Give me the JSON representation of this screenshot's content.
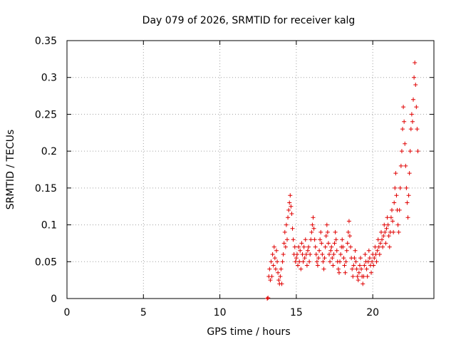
{
  "chart_data": {
    "type": "scatter",
    "title": "Day 079 of 2026, SRMTID for receiver kalg",
    "xlabel": "GPS time / hours",
    "ylabel": "SRMTID / TECUs",
    "xlim": [
      0,
      24
    ],
    "ylim": [
      0,
      0.35
    ],
    "xticks": [
      0,
      5,
      10,
      15,
      20
    ],
    "xtick_labels": [
      "0",
      "5",
      "10",
      "15",
      "20"
    ],
    "yticks": [
      0,
      0.05,
      0.1,
      0.15,
      0.2,
      0.25,
      0.3,
      0.35
    ],
    "ytick_labels": [
      "0",
      "0.05",
      "0.1",
      "0.15",
      "0.2",
      "0.25",
      "0.3",
      "0.35"
    ],
    "grid": true,
    "marker": "plus",
    "color": "#e00000",
    "series": [
      {
        "points": [
          [
            13.1,
            0.0
          ],
          [
            13.15,
            0.001
          ],
          [
            13.2,
            0.03
          ],
          [
            13.25,
            0.04
          ],
          [
            13.3,
            0.025
          ],
          [
            13.35,
            0.05
          ],
          [
            13.4,
            0.03
          ],
          [
            13.45,
            0.06
          ],
          [
            13.5,
            0.045
          ],
          [
            13.55,
            0.07
          ],
          [
            13.6,
            0.055
          ],
          [
            13.65,
            0.04
          ],
          [
            13.7,
            0.065
          ],
          [
            13.75,
            0.05
          ],
          [
            13.8,
            0.035
          ],
          [
            13.85,
            0.025
          ],
          [
            13.9,
            0.02
          ],
          [
            13.95,
            0.03
          ],
          [
            14.0,
            0.04
          ],
          [
            14.05,
            0.02
          ],
          [
            14.1,
            0.05
          ],
          [
            14.15,
            0.06
          ],
          [
            14.2,
            0.075
          ],
          [
            14.25,
            0.09
          ],
          [
            14.3,
            0.07
          ],
          [
            14.35,
            0.1
          ],
          [
            14.4,
            0.08
          ],
          [
            14.45,
            0.11
          ],
          [
            14.5,
            0.12
          ],
          [
            14.55,
            0.13
          ],
          [
            14.6,
            0.14
          ],
          [
            14.65,
            0.125
          ],
          [
            14.7,
            0.115
          ],
          [
            14.75,
            0.095
          ],
          [
            14.8,
            0.08
          ],
          [
            14.85,
            0.06
          ],
          [
            14.9,
            0.07
          ],
          [
            14.95,
            0.05
          ],
          [
            15.0,
            0.055
          ],
          [
            15.05,
            0.06
          ],
          [
            15.1,
            0.045
          ],
          [
            15.15,
            0.07
          ],
          [
            15.2,
            0.05
          ],
          [
            15.25,
            0.065
          ],
          [
            15.3,
            0.04
          ],
          [
            15.35,
            0.075
          ],
          [
            15.4,
            0.06
          ],
          [
            15.45,
            0.05
          ],
          [
            15.5,
            0.07
          ],
          [
            15.55,
            0.055
          ],
          [
            15.6,
            0.08
          ],
          [
            15.65,
            0.06
          ],
          [
            15.7,
            0.045
          ],
          [
            15.75,
            0.065
          ],
          [
            15.8,
            0.07
          ],
          [
            15.85,
            0.05
          ],
          [
            15.9,
            0.06
          ],
          [
            15.95,
            0.08
          ],
          [
            16.0,
            0.09
          ],
          [
            16.05,
            0.1
          ],
          [
            16.1,
            0.11
          ],
          [
            16.15,
            0.095
          ],
          [
            16.2,
            0.08
          ],
          [
            16.25,
            0.07
          ],
          [
            16.3,
            0.06
          ],
          [
            16.35,
            0.05
          ],
          [
            16.4,
            0.045
          ],
          [
            16.45,
            0.055
          ],
          [
            16.5,
            0.065
          ],
          [
            16.55,
            0.08
          ],
          [
            16.6,
            0.09
          ],
          [
            16.65,
            0.075
          ],
          [
            16.7,
            0.06
          ],
          [
            16.75,
            0.05
          ],
          [
            16.8,
            0.04
          ],
          [
            16.85,
            0.055
          ],
          [
            16.9,
            0.07
          ],
          [
            16.95,
            0.085
          ],
          [
            17.0,
            0.1
          ],
          [
            17.05,
            0.09
          ],
          [
            17.1,
            0.075
          ],
          [
            17.15,
            0.06
          ],
          [
            17.2,
            0.05
          ],
          [
            17.25,
            0.065
          ],
          [
            17.3,
            0.07
          ],
          [
            17.35,
            0.055
          ],
          [
            17.4,
            0.045
          ],
          [
            17.45,
            0.06
          ],
          [
            17.5,
            0.075
          ],
          [
            17.55,
            0.09
          ],
          [
            17.6,
            0.08
          ],
          [
            17.65,
            0.065
          ],
          [
            17.7,
            0.05
          ],
          [
            17.75,
            0.04
          ],
          [
            17.8,
            0.035
          ],
          [
            17.85,
            0.05
          ],
          [
            17.9,
            0.06
          ],
          [
            17.95,
            0.07
          ],
          [
            18.0,
            0.08
          ],
          [
            18.05,
            0.07
          ],
          [
            18.1,
            0.055
          ],
          [
            18.15,
            0.045
          ],
          [
            18.2,
            0.035
          ],
          [
            18.25,
            0.05
          ],
          [
            18.3,
            0.065
          ],
          [
            18.35,
            0.075
          ],
          [
            18.4,
            0.09
          ],
          [
            18.45,
            0.105
          ],
          [
            18.5,
            0.085
          ],
          [
            18.55,
            0.07
          ],
          [
            18.6,
            0.055
          ],
          [
            18.65,
            0.04
          ],
          [
            18.7,
            0.03
          ],
          [
            18.75,
            0.045
          ],
          [
            18.8,
            0.055
          ],
          [
            18.85,
            0.065
          ],
          [
            18.9,
            0.05
          ],
          [
            18.95,
            0.04
          ],
          [
            19.0,
            0.03
          ],
          [
            19.05,
            0.025
          ],
          [
            19.1,
            0.035
          ],
          [
            19.15,
            0.045
          ],
          [
            19.2,
            0.055
          ],
          [
            19.25,
            0.04
          ],
          [
            19.3,
            0.03
          ],
          [
            19.35,
            0.02
          ],
          [
            19.4,
            0.03
          ],
          [
            19.45,
            0.045
          ],
          [
            19.5,
            0.06
          ],
          [
            19.55,
            0.05
          ],
          [
            19.6,
            0.04
          ],
          [
            19.65,
            0.03
          ],
          [
            19.7,
            0.05
          ],
          [
            19.75,
            0.065
          ],
          [
            19.8,
            0.055
          ],
          [
            19.85,
            0.045
          ],
          [
            19.9,
            0.035
          ],
          [
            19.95,
            0.05
          ],
          [
            20.0,
            0.06
          ],
          [
            20.05,
            0.045
          ],
          [
            20.1,
            0.055
          ],
          [
            20.15,
            0.07
          ],
          [
            20.2,
            0.06
          ],
          [
            20.25,
            0.05
          ],
          [
            20.3,
            0.065
          ],
          [
            20.35,
            0.08
          ],
          [
            20.4,
            0.07
          ],
          [
            20.45,
            0.06
          ],
          [
            20.5,
            0.075
          ],
          [
            20.55,
            0.09
          ],
          [
            20.6,
            0.08
          ],
          [
            20.65,
            0.07
          ],
          [
            20.7,
            0.085
          ],
          [
            20.75,
            0.1
          ],
          [
            20.8,
            0.09
          ],
          [
            20.85,
            0.075
          ],
          [
            20.9,
            0.095
          ],
          [
            20.95,
            0.11
          ],
          [
            21.0,
            0.1
          ],
          [
            21.05,
            0.085
          ],
          [
            21.1,
            0.07
          ],
          [
            21.15,
            0.09
          ],
          [
            21.2,
            0.11
          ],
          [
            21.25,
            0.12
          ],
          [
            21.3,
            0.105
          ],
          [
            21.35,
            0.09
          ],
          [
            21.4,
            0.13
          ],
          [
            21.45,
            0.15
          ],
          [
            21.5,
            0.17
          ],
          [
            21.55,
            0.14
          ],
          [
            21.6,
            0.12
          ],
          [
            21.65,
            0.1
          ],
          [
            21.7,
            0.09
          ],
          [
            21.75,
            0.12
          ],
          [
            21.8,
            0.15
          ],
          [
            21.85,
            0.18
          ],
          [
            21.9,
            0.2
          ],
          [
            21.95,
            0.23
          ],
          [
            22.0,
            0.26
          ],
          [
            22.05,
            0.24
          ],
          [
            22.1,
            0.21
          ],
          [
            22.15,
            0.18
          ],
          [
            22.2,
            0.15
          ],
          [
            22.25,
            0.13
          ],
          [
            22.3,
            0.11
          ],
          [
            22.35,
            0.14
          ],
          [
            22.4,
            0.17
          ],
          [
            22.45,
            0.2
          ],
          [
            22.5,
            0.23
          ],
          [
            22.55,
            0.25
          ],
          [
            22.6,
            0.24
          ],
          [
            22.65,
            0.27
          ],
          [
            22.7,
            0.3
          ],
          [
            22.75,
            0.32
          ],
          [
            22.8,
            0.29
          ],
          [
            22.85,
            0.26
          ],
          [
            22.9,
            0.23
          ],
          [
            22.95,
            0.2
          ]
        ]
      }
    ]
  }
}
